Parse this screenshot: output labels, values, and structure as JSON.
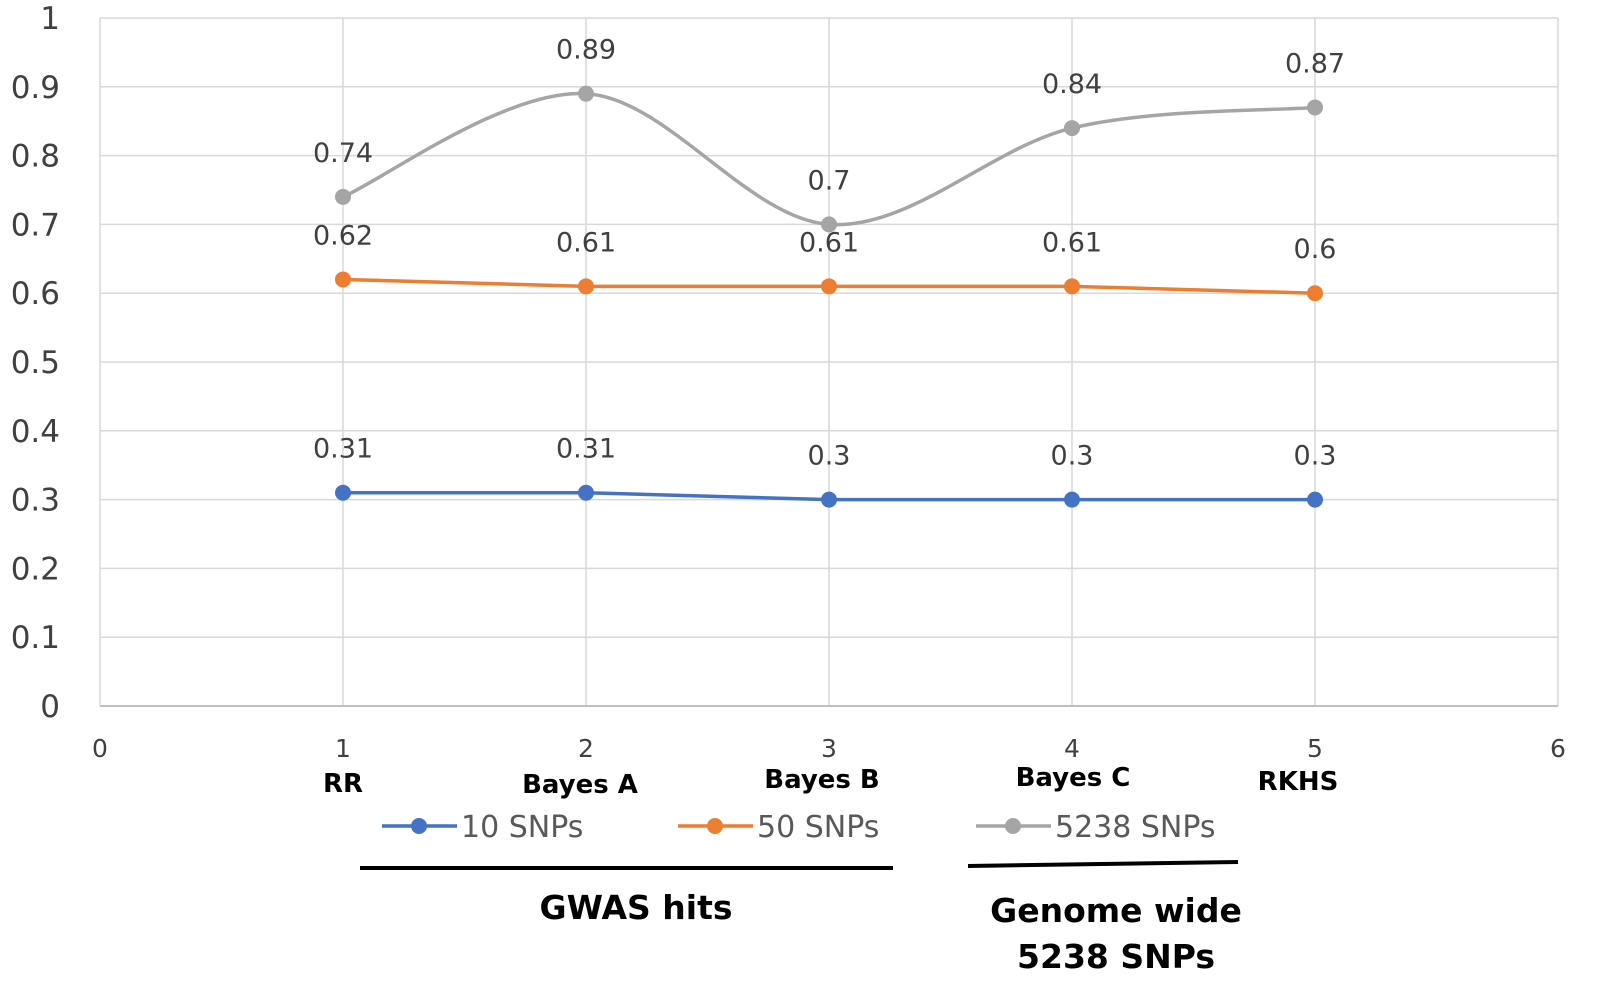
{
  "chart_data": {
    "type": "line",
    "x": [
      1,
      2,
      3,
      4,
      5
    ],
    "xlim": [
      0,
      6
    ],
    "ylim": [
      0,
      1
    ],
    "x_ticks": [
      "0",
      "1",
      "2",
      "3",
      "4",
      "5",
      "6"
    ],
    "y_ticks": [
      "0",
      "0.1",
      "0.2",
      "0.3",
      "0.4",
      "0.5",
      "0.6",
      "0.7",
      "0.8",
      "0.9",
      "1"
    ],
    "grid": true,
    "method_labels": [
      "RR",
      "Bayes A",
      "Bayes B",
      "Bayes C",
      "RKHS"
    ],
    "series": [
      {
        "name": "10 SNPs",
        "color": "#4472C4",
        "smooth": false,
        "values": [
          0.31,
          0.31,
          0.3,
          0.3,
          0.3
        ],
        "labels": [
          "0.31",
          "0.31",
          "0.3",
          "0.3",
          "0.3"
        ]
      },
      {
        "name": "50 SNPs",
        "color": "#ED7D31",
        "smooth": false,
        "values": [
          0.62,
          0.61,
          0.61,
          0.61,
          0.6
        ],
        "labels": [
          "0.62",
          "0.61",
          "0.61",
          "0.61",
          "0.6"
        ]
      },
      {
        "name": "5238 SNPs",
        "color": "#A5A5A5",
        "smooth": true,
        "values": [
          0.74,
          0.89,
          0.7,
          0.84,
          0.87
        ],
        "labels": [
          "0.74",
          "0.89",
          "0.7",
          "0.84",
          "0.87"
        ]
      }
    ],
    "legend_position": "bottom",
    "group_annotations": [
      {
        "label": "GWAS hits",
        "lines": [
          "GWAS hits"
        ]
      },
      {
        "label": "Genome wide 5238 SNPs",
        "lines": [
          "Genome wide",
          "5238 SNPs"
        ]
      }
    ]
  }
}
